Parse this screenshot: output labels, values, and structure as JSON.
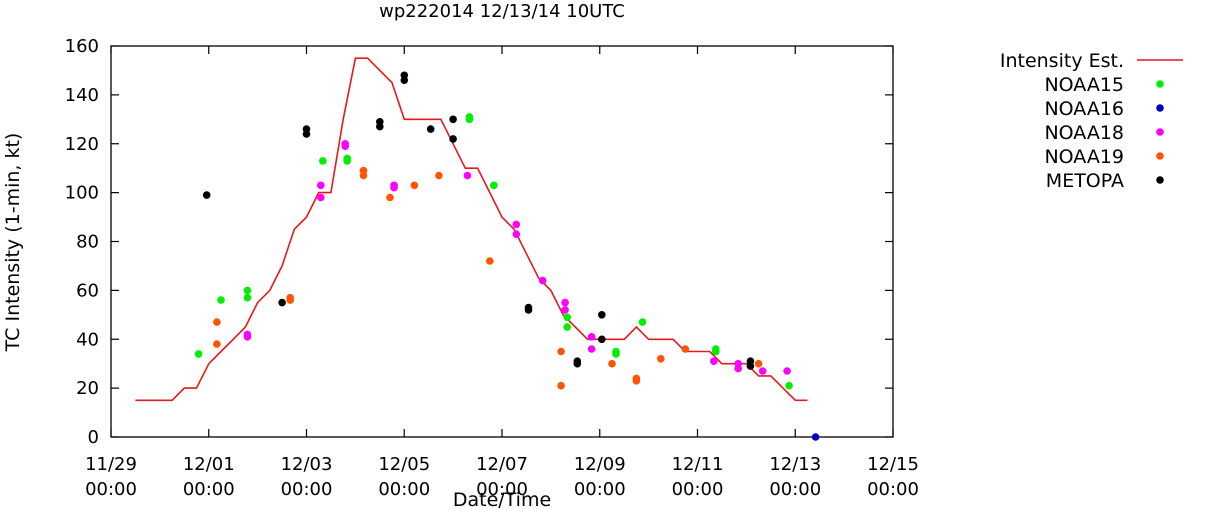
{
  "chart_data": {
    "type": "line",
    "title": "wp222014 12/13/14 10UTC",
    "xlabel": "Date/Time",
    "ylabel": "TC Intensity (1-min, kt)",
    "ylim": [
      0,
      160
    ],
    "yticks": [
      0,
      20,
      40,
      60,
      80,
      100,
      120,
      140,
      160
    ],
    "xlim": [
      "2014-11-29 00:00",
      "2014-12-15 00:00"
    ],
    "xticks": [
      {
        "at": "2014-11-29 00:00",
        "line1": "11/29",
        "line2": "00:00"
      },
      {
        "at": "2014-12-01 00:00",
        "line1": "12/01",
        "line2": "00:00"
      },
      {
        "at": "2014-12-03 00:00",
        "line1": "12/03",
        "line2": "00:00"
      },
      {
        "at": "2014-12-05 00:00",
        "line1": "12/05",
        "line2": "00:00"
      },
      {
        "at": "2014-12-07 00:00",
        "line1": "12/07",
        "line2": "00:00"
      },
      {
        "at": "2014-12-09 00:00",
        "line1": "12/09",
        "line2": "00:00"
      },
      {
        "at": "2014-12-11 00:00",
        "line1": "12/11",
        "line2": "00:00"
      },
      {
        "at": "2014-12-13 00:00",
        "line1": "12/13",
        "line2": "00:00"
      },
      {
        "at": "2014-12-15 00:00",
        "line1": "12/15",
        "line2": "00:00"
      }
    ],
    "legend_position": "right-outside",
    "grid": false,
    "series": [
      {
        "name": "Intensity Est.",
        "kind": "line",
        "color": "#e41a1c",
        "points": [
          [
            "2014-11-29 12:00",
            15
          ],
          [
            "2014-11-30 00:00",
            15
          ],
          [
            "2014-11-30 06:00",
            15
          ],
          [
            "2014-11-30 12:00",
            20
          ],
          [
            "2014-11-30 18:00",
            20
          ],
          [
            "2014-12-01 00:00",
            30
          ],
          [
            "2014-12-01 06:00",
            35
          ],
          [
            "2014-12-01 12:00",
            40
          ],
          [
            "2014-12-01 18:00",
            45
          ],
          [
            "2014-12-02 00:00",
            55
          ],
          [
            "2014-12-02 06:00",
            60
          ],
          [
            "2014-12-02 12:00",
            70
          ],
          [
            "2014-12-02 18:00",
            85
          ],
          [
            "2014-12-03 00:00",
            90
          ],
          [
            "2014-12-03 06:00",
            100
          ],
          [
            "2014-12-03 12:00",
            100
          ],
          [
            "2014-12-03 18:00",
            130
          ],
          [
            "2014-12-04 00:00",
            155
          ],
          [
            "2014-12-04 06:00",
            155
          ],
          [
            "2014-12-04 12:00",
            150
          ],
          [
            "2014-12-04 18:00",
            145
          ],
          [
            "2014-12-05 00:00",
            130
          ],
          [
            "2014-12-05 06:00",
            130
          ],
          [
            "2014-12-05 12:00",
            130
          ],
          [
            "2014-12-05 18:00",
            130
          ],
          [
            "2014-12-06 00:00",
            120
          ],
          [
            "2014-12-06 06:00",
            110
          ],
          [
            "2014-12-06 12:00",
            110
          ],
          [
            "2014-12-06 18:00",
            100
          ],
          [
            "2014-12-07 00:00",
            90
          ],
          [
            "2014-12-07 06:00",
            85
          ],
          [
            "2014-12-07 12:00",
            75
          ],
          [
            "2014-12-07 18:00",
            65
          ],
          [
            "2014-12-08 00:00",
            60
          ],
          [
            "2014-12-08 06:00",
            50
          ],
          [
            "2014-12-08 12:00",
            45
          ],
          [
            "2014-12-08 18:00",
            40
          ],
          [
            "2014-12-09 00:00",
            40
          ],
          [
            "2014-12-09 06:00",
            40
          ],
          [
            "2014-12-09 12:00",
            40
          ],
          [
            "2014-12-09 18:00",
            45
          ],
          [
            "2014-12-10 00:00",
            40
          ],
          [
            "2014-12-10 06:00",
            40
          ],
          [
            "2014-12-10 12:00",
            40
          ],
          [
            "2014-12-10 18:00",
            35
          ],
          [
            "2014-12-11 00:00",
            35
          ],
          [
            "2014-12-11 06:00",
            35
          ],
          [
            "2014-12-11 12:00",
            30
          ],
          [
            "2014-12-11 18:00",
            30
          ],
          [
            "2014-12-12 00:00",
            30
          ],
          [
            "2014-12-12 06:00",
            25
          ],
          [
            "2014-12-12 12:00",
            25
          ],
          [
            "2014-12-12 18:00",
            20
          ],
          [
            "2014-12-13 00:00",
            15
          ],
          [
            "2014-12-13 06:00",
            15
          ]
        ]
      },
      {
        "name": "NOAA15",
        "kind": "scatter",
        "color": "#00ee00",
        "points": [
          [
            "2014-11-30 19:00",
            34
          ],
          [
            "2014-12-01 06:00",
            56
          ],
          [
            "2014-12-01 19:00",
            57
          ],
          [
            "2014-12-01 19:00",
            60
          ],
          [
            "2014-12-03 08:00",
            113
          ],
          [
            "2014-12-03 20:00",
            113
          ],
          [
            "2014-12-03 20:00",
            114
          ],
          [
            "2014-12-06 08:00",
            130
          ],
          [
            "2014-12-06 08:00",
            131
          ],
          [
            "2014-12-06 20:00",
            103
          ],
          [
            "2014-12-08 08:00",
            49
          ],
          [
            "2014-12-08 08:00",
            45
          ],
          [
            "2014-12-09 08:00",
            34
          ],
          [
            "2014-12-09 08:00",
            35
          ],
          [
            "2014-12-09 21:00",
            47
          ],
          [
            "2014-12-11 09:00",
            35
          ],
          [
            "2014-12-11 09:00",
            36
          ],
          [
            "2014-12-12 21:00",
            21
          ]
        ]
      },
      {
        "name": "NOAA16",
        "kind": "scatter",
        "color": "#0000cc",
        "points": [
          [
            "2014-12-13 10:00",
            0
          ]
        ]
      },
      {
        "name": "NOAA18",
        "kind": "scatter",
        "color": "#ff00ff",
        "points": [
          [
            "2014-12-01 19:00",
            41
          ],
          [
            "2014-12-01 19:00",
            42
          ],
          [
            "2014-12-03 07:00",
            103
          ],
          [
            "2014-12-03 07:00",
            98
          ],
          [
            "2014-12-03 19:00",
            119
          ],
          [
            "2014-12-03 19:00",
            120
          ],
          [
            "2014-12-04 19:00",
            102
          ],
          [
            "2014-12-04 19:00",
            103
          ],
          [
            "2014-12-06 07:00",
            107
          ],
          [
            "2014-12-07 07:00",
            87
          ],
          [
            "2014-12-07 07:00",
            83
          ],
          [
            "2014-12-07 20:00",
            64
          ],
          [
            "2014-12-08 07:00",
            55
          ],
          [
            "2014-12-08 07:00",
            52
          ],
          [
            "2014-12-08 20:00",
            41
          ],
          [
            "2014-12-08 20:00",
            36
          ],
          [
            "2014-12-11 08:00",
            31
          ],
          [
            "2014-12-11 20:00",
            28
          ],
          [
            "2014-12-11 20:00",
            30
          ],
          [
            "2014-12-12 08:00",
            27
          ],
          [
            "2014-12-12 20:00",
            27
          ]
        ]
      },
      {
        "name": "NOAA19",
        "kind": "scatter",
        "color": "#ff5500",
        "points": [
          [
            "2014-12-01 04:00",
            47
          ],
          [
            "2014-12-01 04:00",
            38
          ],
          [
            "2014-12-02 16:00",
            56
          ],
          [
            "2014-12-02 16:00",
            57
          ],
          [
            "2014-12-04 04:00",
            109
          ],
          [
            "2014-12-04 04:00",
            107
          ],
          [
            "2014-12-04 17:00",
            98
          ],
          [
            "2014-12-05 05:00",
            103
          ],
          [
            "2014-12-05 17:00",
            107
          ],
          [
            "2014-12-06 18:00",
            72
          ],
          [
            "2014-12-08 05:00",
            35
          ],
          [
            "2014-12-08 05:00",
            21
          ],
          [
            "2014-12-09 06:00",
            30
          ],
          [
            "2014-12-09 18:00",
            24
          ],
          [
            "2014-12-09 18:00",
            23
          ],
          [
            "2014-12-10 06:00",
            32
          ],
          [
            "2014-12-10 18:00",
            36
          ],
          [
            "2014-12-12 06:00",
            30
          ]
        ]
      },
      {
        "name": "METOPA",
        "kind": "scatter",
        "color": "#000000",
        "points": [
          [
            "2014-11-30 23:00",
            99
          ],
          [
            "2014-12-02 12:00",
            55
          ],
          [
            "2014-12-03 00:00",
            126
          ],
          [
            "2014-12-03 00:00",
            124
          ],
          [
            "2014-12-04 12:00",
            129
          ],
          [
            "2014-12-04 12:00",
            127
          ],
          [
            "2014-12-05 00:00",
            148
          ],
          [
            "2014-12-05 00:00",
            146
          ],
          [
            "2014-12-05 13:00",
            126
          ],
          [
            "2014-12-06 00:00",
            130
          ],
          [
            "2014-12-06 00:00",
            122
          ],
          [
            "2014-12-07 13:00",
            53
          ],
          [
            "2014-12-07 13:00",
            52
          ],
          [
            "2014-12-08 13:00",
            31
          ],
          [
            "2014-12-08 13:00",
            30
          ],
          [
            "2014-12-09 01:00",
            50
          ],
          [
            "2014-12-09 01:00",
            40
          ],
          [
            "2014-12-12 02:00",
            31
          ],
          [
            "2014-12-12 02:00",
            29
          ]
        ]
      }
    ]
  }
}
